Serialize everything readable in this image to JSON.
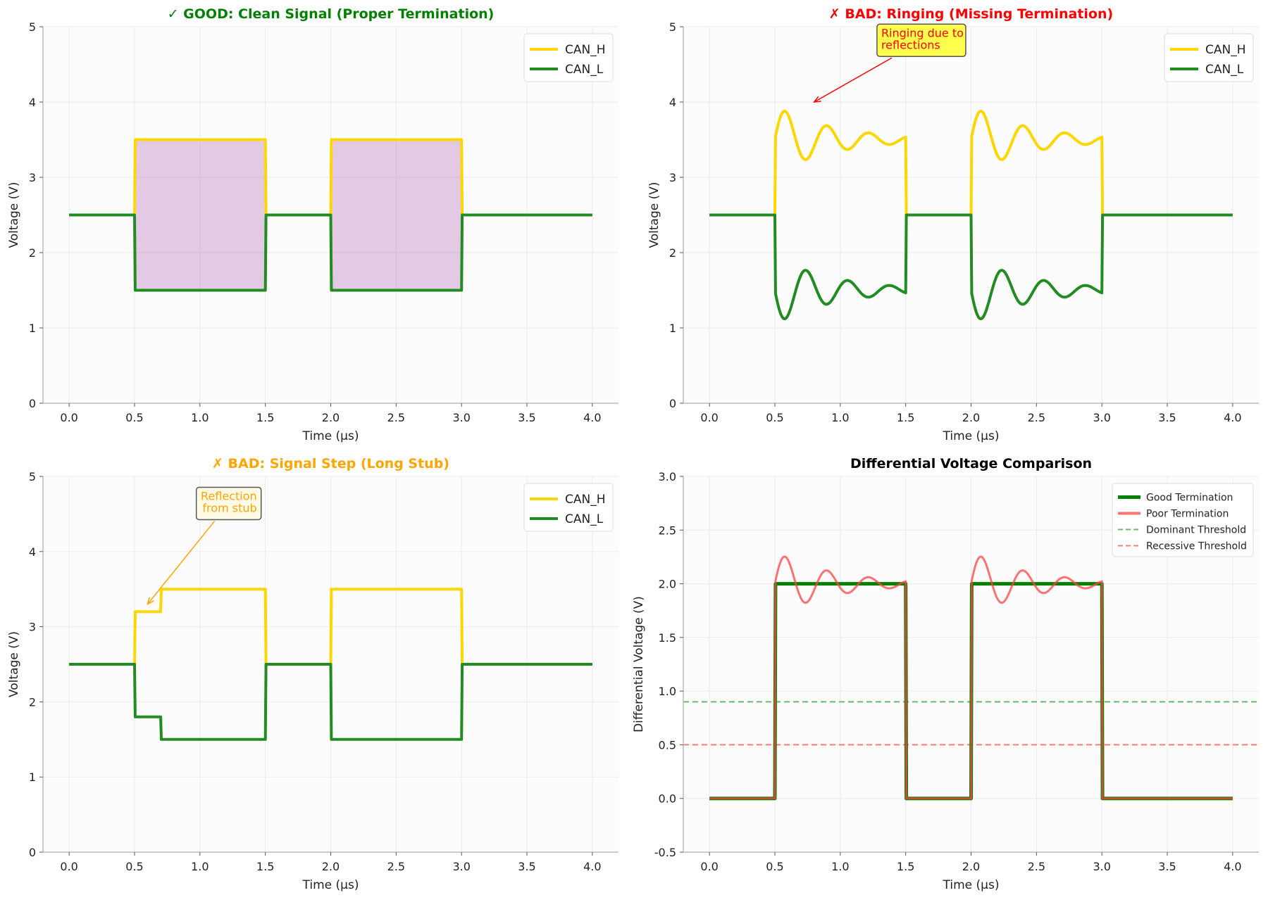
{
  "chart_data": [
    {
      "type": "line",
      "title": "✓ GOOD: Clean Signal (Proper Termination)",
      "title_color": "#008000",
      "xlabel": "Time (µs)",
      "ylabel": "Voltage (V)",
      "xlim": [
        -0.2,
        4.2
      ],
      "ylim": [
        0,
        5
      ],
      "xticks": [
        "0.0",
        "0.5",
        "1.0",
        "1.5",
        "2.0",
        "2.5",
        "3.0",
        "3.5",
        "4.0"
      ],
      "yticks": [
        "0",
        "1",
        "2",
        "3",
        "4",
        "5"
      ],
      "grid": true,
      "legend": "upper right",
      "series": [
        {
          "name": "CAN_H",
          "color": "#FFD700",
          "points": [
            [
              0,
              2.5
            ],
            [
              0.5,
              2.5
            ],
            [
              0.505,
              3.5
            ],
            [
              1.5,
              3.5
            ],
            [
              1.505,
              2.5
            ],
            [
              2.0,
              2.5
            ],
            [
              2.005,
              3.5
            ],
            [
              3.0,
              3.5
            ],
            [
              3.005,
              2.5
            ],
            [
              4.0,
              2.5
            ]
          ]
        },
        {
          "name": "CAN_L",
          "color": "#228B22",
          "points": [
            [
              0,
              2.5
            ],
            [
              0.5,
              2.5
            ],
            [
              0.505,
              1.5
            ],
            [
              1.5,
              1.5
            ],
            [
              1.505,
              2.5
            ],
            [
              2.0,
              2.5
            ],
            [
              2.005,
              1.5
            ],
            [
              3.0,
              1.5
            ],
            [
              3.005,
              2.5
            ],
            [
              4.0,
              2.5
            ]
          ]
        }
      ],
      "fill_between": {
        "upper": "CAN_H",
        "lower": "CAN_L",
        "windows": [
          [
            0.5,
            1.5
          ],
          [
            2.0,
            3.0
          ]
        ],
        "color": "#800080",
        "alpha": 0.2
      }
    },
    {
      "type": "line",
      "title": "✗ BAD: Ringing (Missing Termination)",
      "title_color": "#FF0000",
      "xlabel": "Time (µs)",
      "ylabel": "Voltage (V)",
      "xlim": [
        -0.2,
        4.2
      ],
      "ylim": [
        0,
        5
      ],
      "xticks": [
        "0.0",
        "0.5",
        "1.0",
        "1.5",
        "2.0",
        "2.5",
        "3.0",
        "3.5",
        "4.0"
      ],
      "yticks": [
        "0",
        "1",
        "2",
        "3",
        "4",
        "5"
      ],
      "grid": true,
      "legend": "upper right",
      "series": [
        {
          "name": "CAN_H",
          "color": "#FFD700",
          "points": [
            [
              0,
              2.5
            ],
            [
              0.5,
              2.5
            ],
            [
              0.505,
              3.5
            ],
            [
              1.5,
              3.5
            ],
            [
              1.505,
              2.5
            ],
            [
              2.0,
              2.5
            ],
            [
              2.005,
              3.5
            ],
            [
              3.0,
              3.5
            ],
            [
              3.005,
              2.5
            ],
            [
              4.0,
              2.5
            ]
          ],
          "ringing": {
            "starts": [
              0.5,
              2.0
            ],
            "duration_us": 1.0,
            "amplitude": 0.45,
            "period_us": 0.32,
            "decay_us": 0.45
          }
        },
        {
          "name": "CAN_L",
          "color": "#228B22",
          "points": [
            [
              0,
              2.5
            ],
            [
              0.5,
              2.5
            ],
            [
              0.505,
              1.5
            ],
            [
              1.5,
              1.5
            ],
            [
              1.505,
              2.5
            ],
            [
              2.0,
              2.5
            ],
            [
              2.005,
              1.5
            ],
            [
              3.0,
              1.5
            ],
            [
              3.005,
              2.5
            ],
            [
              4.0,
              2.5
            ]
          ],
          "ringing": {
            "starts": [
              0.5,
              2.0
            ],
            "duration_us": 1.0,
            "amplitude": -0.45,
            "period_us": 0.32,
            "decay_us": 0.45
          }
        }
      ],
      "annotation": {
        "text_lines": [
          "Ringing due to",
          "reflections"
        ],
        "xy": [
          0.8,
          4.0
        ],
        "xytext": [
          1.62,
          4.82
        ],
        "text_color": "#FF0000",
        "box_color": "#FFFF4D"
      }
    },
    {
      "type": "line",
      "title": "✗ BAD: Signal Step (Long Stub)",
      "title_color": "#FFA500",
      "xlabel": "Time (µs)",
      "ylabel": "Voltage (V)",
      "xlim": [
        -0.2,
        4.2
      ],
      "ylim": [
        0,
        5
      ],
      "xticks": [
        "0.0",
        "0.5",
        "1.0",
        "1.5",
        "2.0",
        "2.5",
        "3.0",
        "3.5",
        "4.0"
      ],
      "yticks": [
        "0",
        "1",
        "2",
        "3",
        "4",
        "5"
      ],
      "grid": true,
      "legend": "upper right",
      "series": [
        {
          "name": "CAN_H",
          "color": "#FFD700",
          "points": [
            [
              0,
              2.5
            ],
            [
              0.5,
              2.5
            ],
            [
              0.505,
              3.2
            ],
            [
              0.7,
              3.2
            ],
            [
              0.705,
              3.5
            ],
            [
              1.5,
              3.5
            ],
            [
              1.505,
              2.5
            ],
            [
              2.0,
              2.5
            ],
            [
              2.005,
              3.5
            ],
            [
              3.0,
              3.5
            ],
            [
              3.005,
              2.5
            ],
            [
              4.0,
              2.5
            ]
          ]
        },
        {
          "name": "CAN_L",
          "color": "#228B22",
          "points": [
            [
              0,
              2.5
            ],
            [
              0.5,
              2.5
            ],
            [
              0.505,
              1.8
            ],
            [
              0.7,
              1.8
            ],
            [
              0.705,
              1.5
            ],
            [
              1.5,
              1.5
            ],
            [
              1.505,
              2.5
            ],
            [
              2.0,
              2.5
            ],
            [
              2.005,
              1.5
            ],
            [
              3.0,
              1.5
            ],
            [
              3.005,
              2.5
            ],
            [
              4.0,
              2.5
            ]
          ]
        }
      ],
      "annotation": {
        "text_lines": [
          "Reflection",
          "from stub"
        ],
        "xy": [
          0.6,
          3.3
        ],
        "xytext": [
          1.22,
          4.64
        ],
        "text_color": "#FFA500",
        "box_color": "#FFFBE6"
      }
    },
    {
      "type": "line",
      "title": "Differential Voltage Comparison",
      "title_color": "#000000",
      "xlabel": "Time (µs)",
      "ylabel": "Differential Voltage (V)",
      "xlim": [
        -0.2,
        4.2
      ],
      "ylim": [
        -0.5,
        3.0
      ],
      "xticks": [
        "0.0",
        "0.5",
        "1.0",
        "1.5",
        "2.0",
        "2.5",
        "3.0",
        "3.5",
        "4.0"
      ],
      "yticks": [
        "-0.5",
        "0.0",
        "0.5",
        "1.0",
        "1.5",
        "2.0",
        "2.5",
        "3.0"
      ],
      "grid": true,
      "legend": "upper right",
      "series": [
        {
          "name": "Good Termination",
          "color": "#008000",
          "points": [
            [
              0,
              0
            ],
            [
              0.5,
              0
            ],
            [
              0.505,
              2.0
            ],
            [
              1.5,
              2.0
            ],
            [
              1.505,
              0
            ],
            [
              2.0,
              0
            ],
            [
              2.005,
              2.0
            ],
            [
              3.0,
              2.0
            ],
            [
              3.005,
              0
            ],
            [
              4.0,
              0
            ]
          ]
        },
        {
          "name": "Poor Termination",
          "color": "#FF4444",
          "points": [
            [
              0,
              0
            ],
            [
              0.5,
              0
            ],
            [
              0.505,
              2.0
            ],
            [
              1.5,
              2.0
            ],
            [
              1.505,
              0
            ],
            [
              2.0,
              0
            ],
            [
              2.005,
              2.0
            ],
            [
              3.0,
              2.0
            ],
            [
              3.005,
              0
            ],
            [
              4.0,
              0
            ]
          ],
          "ringing": {
            "starts": [
              0.5,
              2.0
            ],
            "duration_us": 1.0,
            "amplitude": 0.3,
            "period_us": 0.32,
            "decay_us": 0.45
          }
        }
      ],
      "hlines": [
        {
          "name": "Dominant Threshold",
          "y": 0.9,
          "color": "#4CAF50",
          "style": "dashed"
        },
        {
          "name": "Recessive Threshold",
          "y": 0.5,
          "color": "#FF6666",
          "style": "dashed"
        }
      ]
    }
  ]
}
